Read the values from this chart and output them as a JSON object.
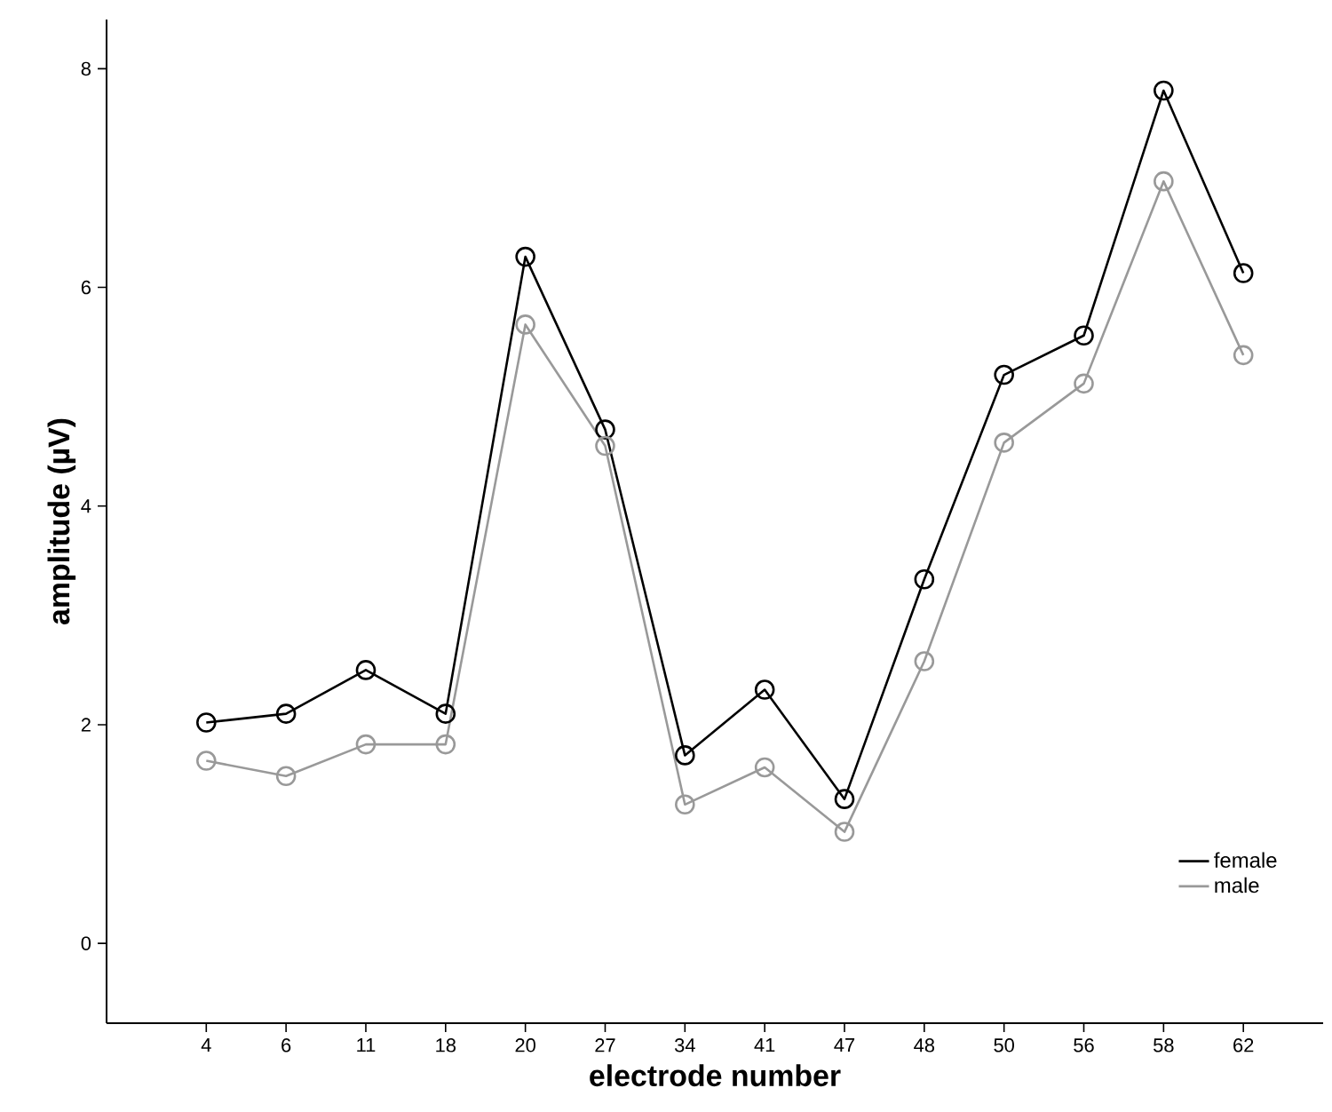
{
  "chart_data": {
    "type": "line",
    "xlabel": "electrode number",
    "ylabel": "amplitude (µV)",
    "categories": [
      "4",
      "6",
      "11",
      "18",
      "20",
      "27",
      "34",
      "41",
      "47",
      "48",
      "50",
      "56",
      "58",
      "62"
    ],
    "series": [
      {
        "name": "female",
        "color": "#000000",
        "values": [
          2.02,
          2.1,
          2.5,
          2.1,
          6.28,
          4.7,
          1.72,
          2.32,
          1.32,
          3.33,
          5.2,
          5.56,
          7.8,
          6.13
        ]
      },
      {
        "name": "male",
        "color": "#999999",
        "values": [
          1.67,
          1.53,
          1.82,
          1.82,
          5.66,
          4.55,
          1.27,
          1.61,
          1.02,
          2.58,
          4.58,
          5.12,
          6.97,
          5.38
        ]
      }
    ],
    "ylim": [
      -0.73,
      8.45
    ],
    "yticks": [
      0,
      2,
      4,
      6,
      8
    ],
    "grid": false,
    "legend": "bottom right",
    "marker": "circle",
    "line_style": "solid"
  }
}
